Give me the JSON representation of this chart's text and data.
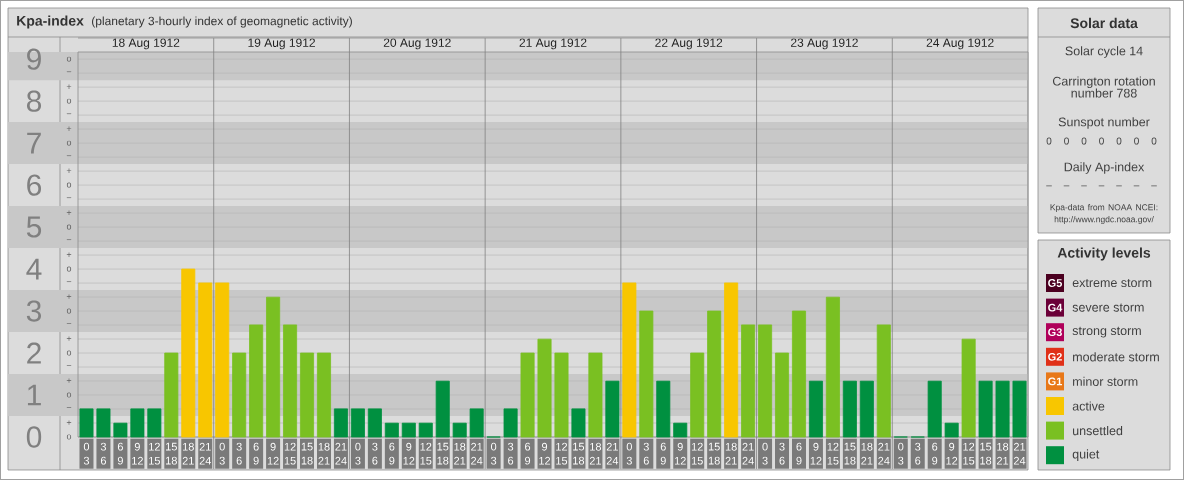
{
  "chart_data": [
    {
      "type": "bar",
      "title": "Kpa-index",
      "subtitle": "(planetary 3-hourly index of geomagnetic activity)",
      "categories": [
        "0 3",
        "3 6",
        "6 9",
        "9 12",
        "12 15",
        "15 18",
        "18 21",
        "21 24",
        "0 3",
        "3 6",
        "6 9",
        "9 12",
        "12 15",
        "15 18",
        "18 21",
        "21 24",
        "0 3",
        "3 6",
        "6 9",
        "9 12",
        "12 15",
        "15 18",
        "18 21",
        "21 24",
        "0 3",
        "3 6",
        "6 9",
        "9 12",
        "12 15",
        "15 18",
        "18 21",
        "21 24",
        "0 3",
        "3 6",
        "6 9",
        "9 12",
        "12 15",
        "15 18",
        "18 21",
        "21 24",
        "0 3",
        "3 6",
        "6 9",
        "9 12",
        "12 15",
        "15 18",
        "18 21",
        "21 24",
        "0 3",
        "3 6",
        "6 9",
        "9 12",
        "12 15",
        "15 18",
        "18 21",
        "21 24"
      ],
      "series": [
        {
          "name": "extreme storm",
          "color": "#4b0020",
          "values": [
            null,
            null,
            null,
            null,
            null,
            null,
            null,
            null,
            null,
            null,
            null,
            null,
            null,
            null,
            null,
            null,
            null,
            null,
            null,
            null,
            null,
            null,
            null,
            null,
            null,
            null,
            null,
            null,
            null,
            null,
            null,
            null,
            null,
            null,
            null,
            null,
            null,
            null,
            null,
            null,
            null,
            null,
            null,
            null,
            null,
            null,
            null,
            null,
            null,
            null,
            null,
            null,
            null,
            null,
            null,
            null
          ]
        },
        {
          "name": "severe storm",
          "color": "#6b0038",
          "values": [
            null,
            null,
            null,
            null,
            null,
            null,
            null,
            null,
            null,
            null,
            null,
            null,
            null,
            null,
            null,
            null,
            null,
            null,
            null,
            null,
            null,
            null,
            null,
            null,
            null,
            null,
            null,
            null,
            null,
            null,
            null,
            null,
            null,
            null,
            null,
            null,
            null,
            null,
            null,
            null,
            null,
            null,
            null,
            null,
            null,
            null,
            null,
            null,
            null,
            null,
            null,
            null,
            null,
            null,
            null,
            null
          ]
        },
        {
          "name": "strong storm",
          "color": "#b0005a",
          "values": [
            null,
            null,
            null,
            null,
            null,
            null,
            null,
            null,
            null,
            null,
            null,
            null,
            null,
            null,
            null,
            null,
            null,
            null,
            null,
            null,
            null,
            null,
            null,
            null,
            null,
            null,
            null,
            null,
            null,
            null,
            null,
            null,
            null,
            null,
            null,
            null,
            null,
            null,
            null,
            null,
            null,
            null,
            null,
            null,
            null,
            null,
            null,
            null,
            null,
            null,
            null,
            null,
            null,
            null,
            null,
            null
          ]
        },
        {
          "name": "moderate storm",
          "color": "#e03018",
          "values": [
            null,
            null,
            null,
            null,
            null,
            null,
            null,
            null,
            null,
            null,
            null,
            null,
            null,
            null,
            null,
            null,
            null,
            null,
            null,
            null,
            null,
            null,
            null,
            null,
            null,
            null,
            null,
            null,
            null,
            null,
            null,
            null,
            null,
            null,
            null,
            null,
            null,
            null,
            null,
            null,
            null,
            null,
            null,
            null,
            null,
            null,
            null,
            null,
            null,
            null,
            null,
            null,
            null,
            null,
            null,
            null
          ]
        },
        {
          "name": "minor storm",
          "color": "#e87818",
          "values": [
            null,
            null,
            null,
            null,
            null,
            null,
            null,
            null,
            null,
            null,
            null,
            null,
            null,
            null,
            null,
            null,
            null,
            null,
            null,
            null,
            null,
            null,
            null,
            null,
            null,
            null,
            null,
            null,
            null,
            null,
            null,
            null,
            null,
            null,
            null,
            null,
            null,
            null,
            null,
            null,
            null,
            null,
            null,
            null,
            null,
            null,
            null,
            null,
            null,
            null,
            null,
            null,
            null,
            null,
            null,
            null
          ]
        },
        {
          "name": "active",
          "color": "#f8c600",
          "values": [
            null,
            null,
            null,
            null,
            null,
            null,
            4,
            3.67,
            3.67,
            null,
            null,
            null,
            null,
            null,
            null,
            null,
            null,
            null,
            null,
            null,
            null,
            null,
            null,
            null,
            null,
            null,
            null,
            null,
            null,
            null,
            null,
            null,
            3.67,
            null,
            null,
            null,
            null,
            null,
            3.67,
            null,
            null,
            null,
            null,
            null,
            null,
            null,
            null,
            null,
            null,
            null,
            null,
            null,
            null,
            null,
            null,
            null
          ]
        },
        {
          "name": "unsettled",
          "color": "#7ac022",
          "values": [
            null,
            null,
            null,
            null,
            null,
            2,
            null,
            null,
            null,
            2,
            2.67,
            3.33,
            2.67,
            2,
            2,
            null,
            null,
            null,
            null,
            null,
            null,
            null,
            null,
            null,
            null,
            null,
            2,
            2.33,
            2,
            null,
            2,
            null,
            null,
            3,
            null,
            null,
            2,
            3,
            null,
            2.67,
            2.67,
            2,
            3,
            null,
            3.33,
            null,
            null,
            2.67,
            null,
            null,
            null,
            null,
            2.33,
            null,
            null,
            null
          ]
        },
        {
          "name": "quiet",
          "color": "#009040",
          "values": [
            0.67,
            0.67,
            0.33,
            0.67,
            0.67,
            null,
            null,
            null,
            null,
            null,
            null,
            null,
            null,
            null,
            null,
            0.67,
            0.67,
            0.67,
            0.33,
            0.33,
            0.33,
            1.33,
            0.33,
            0.67,
            0,
            0.67,
            null,
            null,
            null,
            0.67,
            null,
            1.33,
            null,
            null,
            1.33,
            0.33,
            null,
            null,
            null,
            null,
            null,
            null,
            null,
            1.33,
            null,
            1.33,
            1.33,
            null,
            0,
            0,
            1.33,
            0.33,
            null,
            1.33,
            1.33,
            1.33
          ]
        }
      ],
      "ylim": [
        0,
        9.17
      ],
      "yticks": [
        0,
        1,
        2,
        3,
        4,
        5,
        6,
        7,
        8,
        9
      ],
      "bands": [
        {
          "axis": "y",
          "from": 0.5,
          "to": 1.5,
          "color": "#c8c8c8"
        },
        {
          "axis": "y",
          "from": 2.5,
          "to": 3.5,
          "color": "#c8c8c8"
        },
        {
          "axis": "y",
          "from": 4.5,
          "to": 5.5,
          "color": "#c8c8c8"
        },
        {
          "axis": "y",
          "from": 6.5,
          "to": 7.5,
          "color": "#c8c8c8"
        },
        {
          "axis": "y",
          "from": 8.5,
          "to": 9.17,
          "color": "#c8c8c8"
        }
      ],
      "grid": "y",
      "legend": "right",
      "legend_title": "Activity levels",
      "annotations": [
        "18 Aug 1912",
        "19 Aug 1912",
        "20 Aug 1912",
        "21 Aug 1912",
        "22 Aug 1912",
        "23 Aug 1912",
        "24 Aug 1912",
        "o",
        "+",
        "−",
        "o",
        "+",
        "−",
        "o",
        "+",
        "−",
        "o",
        "+",
        "−",
        "o",
        "+",
        "−",
        "o",
        "+",
        "−",
        "o",
        "+",
        "−",
        "o",
        "+",
        "−",
        "o",
        "+",
        "−",
        "o",
        "G5",
        "G4",
        "G3",
        "G2",
        "G1"
      ]
    },
    {
      "type": "other",
      "title": "Solar data",
      "annotations": [
        "Solar cycle 14",
        "Carrington rotation number 788"
      ]
    },
    {
      "type": "other",
      "title": "Sunspot number",
      "categories": [
        null,
        null,
        null,
        null,
        null,
        null,
        null
      ],
      "values": [
        0,
        0,
        0,
        0,
        0,
        0,
        0
      ],
      "data_labels": true
    },
    {
      "type": "other",
      "title": "Daily Ap-index",
      "categories": [
        null,
        null,
        null,
        null,
        null,
        null,
        null
      ],
      "values": [
        null,
        null,
        null,
        null,
        null,
        null,
        null
      ],
      "value_labels": [
        "–",
        "–",
        "–",
        "–",
        "–",
        "–",
        "–"
      ],
      "annotations": [
        "Kpa-data from NOAA NCEI: http://www.ngdc.noaa.gov/"
      ]
    }
  ]
}
